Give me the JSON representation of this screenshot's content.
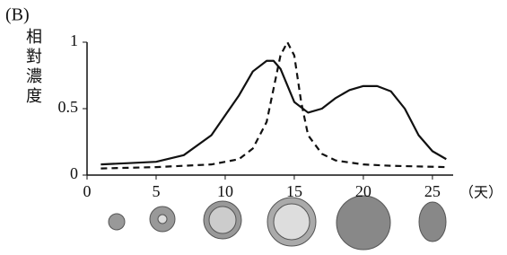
{
  "chart_data": {
    "type": "line",
    "title": "(B)",
    "y_label": "相對濃度",
    "x_label": "（天）",
    "xlim": [
      0,
      26.5
    ],
    "xticks": [
      0,
      5,
      10,
      15,
      20,
      25
    ],
    "ylim": [
      0,
      1
    ],
    "yticks": [
      0,
      0.5,
      1
    ],
    "grid": false,
    "series": [
      {
        "color": "#111111",
        "style": "solid",
        "x": [
          1,
          3,
          5,
          7,
          9,
          11,
          12,
          13,
          13.5,
          14,
          15,
          16,
          17,
          18,
          19,
          20,
          21,
          22,
          23,
          24,
          25,
          26
        ],
        "values": [
          0.08,
          0.09,
          0.1,
          0.15,
          0.3,
          0.6,
          0.78,
          0.86,
          0.86,
          0.8,
          0.55,
          0.47,
          0.5,
          0.58,
          0.64,
          0.67,
          0.67,
          0.63,
          0.5,
          0.3,
          0.18,
          0.12
        ]
      },
      {
        "color": "#111111",
        "style": "dashed",
        "x": [
          1,
          5,
          9,
          11,
          12,
          13,
          13.5,
          14,
          14.5,
          15,
          15.5,
          16,
          17,
          18,
          20,
          22,
          26
        ],
        "values": [
          0.05,
          0.06,
          0.08,
          0.12,
          0.2,
          0.4,
          0.65,
          0.9,
          1.0,
          0.9,
          0.55,
          0.3,
          0.16,
          0.11,
          0.08,
          0.07,
          0.06
        ]
      }
    ]
  }
}
